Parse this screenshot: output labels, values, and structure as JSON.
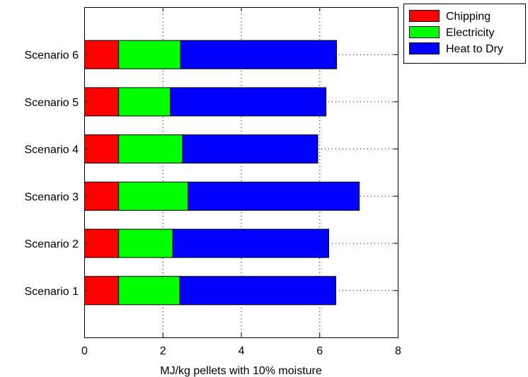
{
  "chart_data": {
    "type": "bar",
    "orientation": "horizontal",
    "stacked": true,
    "title": "",
    "xlabel": "MJ/kg pellets with 10% moisture",
    "ylabel": "",
    "xlim": [
      0,
      8
    ],
    "xticks": [
      0,
      2,
      4,
      6,
      8
    ],
    "xtick_labels": [
      "0",
      "2",
      "4",
      "6",
      "8"
    ],
    "grid": true,
    "legend_position": "top-right-outside",
    "categories": [
      "Scenario 1",
      "Scenario 2",
      "Scenario 3",
      "Scenario 4",
      "Scenario 5",
      "Scenario 6"
    ],
    "series": [
      {
        "name": "Chipping",
        "color": "#ff0000",
        "values": [
          0.87,
          0.87,
          0.87,
          0.87,
          0.87,
          0.87
        ]
      },
      {
        "name": "Electricity",
        "color": "#00ff00",
        "values": [
          1.56,
          1.38,
          1.77,
          1.63,
          1.32,
          1.58
        ]
      },
      {
        "name": "Heat to Dry",
        "color": "#0000ff",
        "values": [
          3.98,
          3.98,
          4.37,
          3.45,
          3.97,
          3.98
        ]
      }
    ]
  }
}
